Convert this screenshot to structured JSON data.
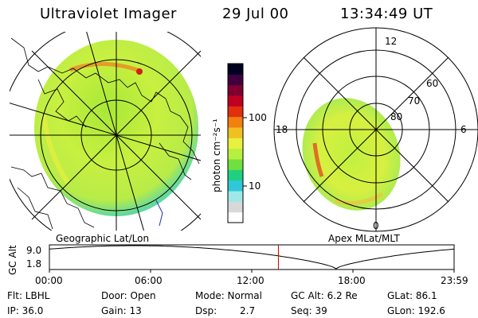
{
  "header": {
    "instrument": "Ultraviolet Imager",
    "date": "29 Jul 00",
    "time": "13:34:49 UT"
  },
  "colorbar": {
    "unit_label": "photon cm⁻²s⁻¹",
    "ticks": [
      {
        "label": "100",
        "value": 100
      },
      {
        "label": "10",
        "value": 10
      }
    ],
    "scale": "log",
    "colors": [
      "#ffffff",
      "#d8d8d8",
      "#9fe8e8",
      "#30c8d8",
      "#20d080",
      "#70e040",
      "#b8f040",
      "#e8f040",
      "#f0c020",
      "#f08010",
      "#e03010",
      "#c00020",
      "#800030",
      "#400040",
      "#000020"
    ]
  },
  "polar_plot": {
    "mlt_labels": {
      "top": "12",
      "left": "18",
      "right": "6",
      "bottom": "0"
    },
    "mlat_labels": [
      "60",
      "70",
      "80"
    ]
  },
  "map_labels": {
    "left": "Geographic Lat/Lon",
    "right": "Apex MLat/MLT"
  },
  "altitude_plot": {
    "y_label": "GC Alt",
    "y_ticks": [
      "9.0",
      "1.8"
    ],
    "x_ticks": [
      "00:00",
      "06:00",
      "12:00",
      "18:00",
      "23:59"
    ],
    "current_time_hours": 13.58,
    "marker_color": "#cc0000"
  },
  "info": {
    "row1": [
      "Flt: LBHL",
      "Door: Open",
      "Mode: Normal",
      "GC Alt: 6.2 Re",
      "GLat: 86.1"
    ],
    "row2": [
      "IP: 36.0",
      "Gain: 13",
      "Dsp:",
      "2.7",
      "Seq: 39",
      "GLon: 192.6"
    ]
  }
}
